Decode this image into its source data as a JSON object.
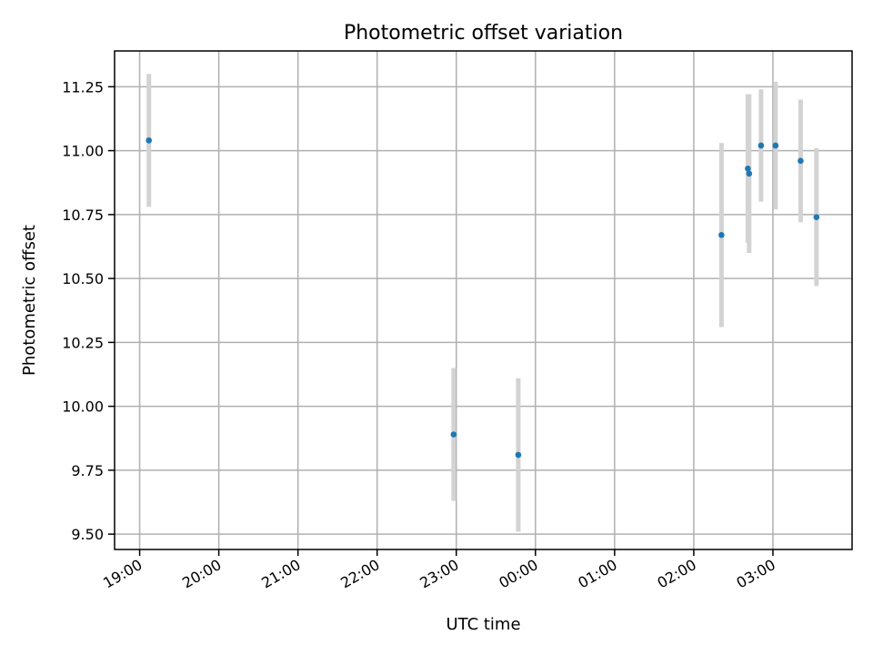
{
  "chart_data": {
    "type": "scatter",
    "title": "Photometric offset variation",
    "xlabel": "UTC time",
    "ylabel": "Photometric offset",
    "x_ticks": [
      "19:00",
      "20:00",
      "21:00",
      "22:00",
      "23:00",
      "00:00",
      "01:00",
      "02:00",
      "03:00"
    ],
    "y_ticks": [
      "9.50",
      "9.75",
      "10.00",
      "10.25",
      "10.50",
      "10.75",
      "11.00",
      "11.25"
    ],
    "xlim": [
      "18:41",
      "04:00"
    ],
    "ylim": [
      9.44,
      11.39
    ],
    "grid": true,
    "colors": {
      "point": "#1f77b4",
      "error_bar": "#d3d3d3",
      "grid": "#b0b0b0"
    },
    "points": [
      {
        "t": "19:07",
        "y": 11.04,
        "err": 0.26
      },
      {
        "t": "22:58",
        "y": 9.89,
        "err": 0.26
      },
      {
        "t": "23:47",
        "y": 9.81,
        "err": 0.3
      },
      {
        "t": "02:21",
        "y": 10.67,
        "err": 0.36
      },
      {
        "t": "02:41",
        "y": 10.93,
        "err": 0.29
      },
      {
        "t": "02:42",
        "y": 10.91,
        "err": 0.31
      },
      {
        "t": "02:51",
        "y": 11.02,
        "err": 0.22
      },
      {
        "t": "03:02",
        "y": 11.02,
        "err": 0.25
      },
      {
        "t": "03:21",
        "y": 10.96,
        "err": 0.24
      },
      {
        "t": "03:33",
        "y": 10.74,
        "err": 0.27
      }
    ]
  }
}
